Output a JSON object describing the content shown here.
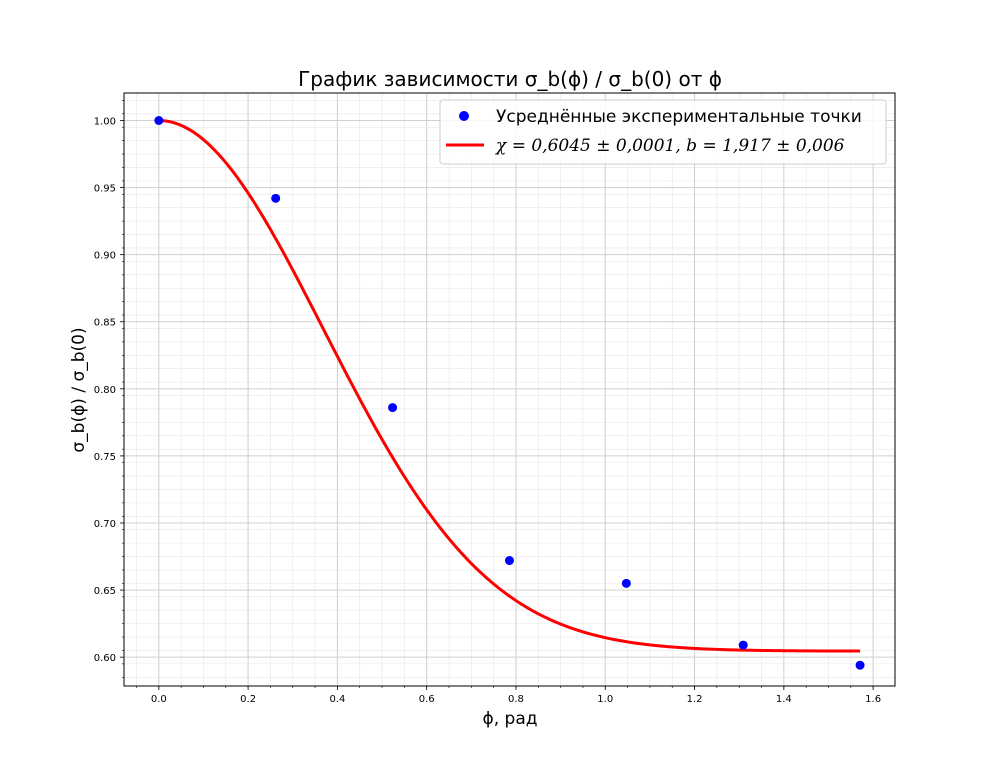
{
  "chart_data": {
    "type": "scatter",
    "title": "График зависимости σ_b(ϕ) / σ_b(0) от ϕ",
    "xlabel": "ϕ, рад",
    "ylabel": "σ_b(ϕ) / σ_b(0)",
    "xlim": [
      -0.078,
      1.649
    ],
    "ylim": [
      0.5785,
      1.0205
    ],
    "grid": "major and minor",
    "legend_position": "top-right",
    "x_ticks": [
      "0.0",
      "0.2",
      "0.4",
      "0.6",
      "0.8",
      "1.0",
      "1.2",
      "1.4",
      "1.6"
    ],
    "y_ticks": [
      "0.60",
      "0.65",
      "0.70",
      "0.75",
      "0.80",
      "0.85",
      "0.90",
      "0.95",
      "1.00"
    ],
    "series": [
      {
        "name": "Усреднённые экспериментальные точки",
        "kind": "scatter",
        "color": "#0000ff",
        "x": [
          0.0,
          0.2618,
          0.5236,
          0.7854,
          1.0472,
          1.309,
          1.5708
        ],
        "y": [
          1.0,
          0.942,
          0.786,
          0.672,
          0.655,
          0.609,
          0.594
        ]
      },
      {
        "name": "χ = 0,6045 ± 0,0001, b = 1,917 ± 0,006",
        "kind": "line",
        "color": "#ff0000",
        "model": "y = chi + (1 - chi) * exp(-(b*x)^2)",
        "params": {
          "chi": 0.6045,
          "b": 1.917
        },
        "x_range": [
          0.0,
          1.5708
        ]
      }
    ]
  }
}
